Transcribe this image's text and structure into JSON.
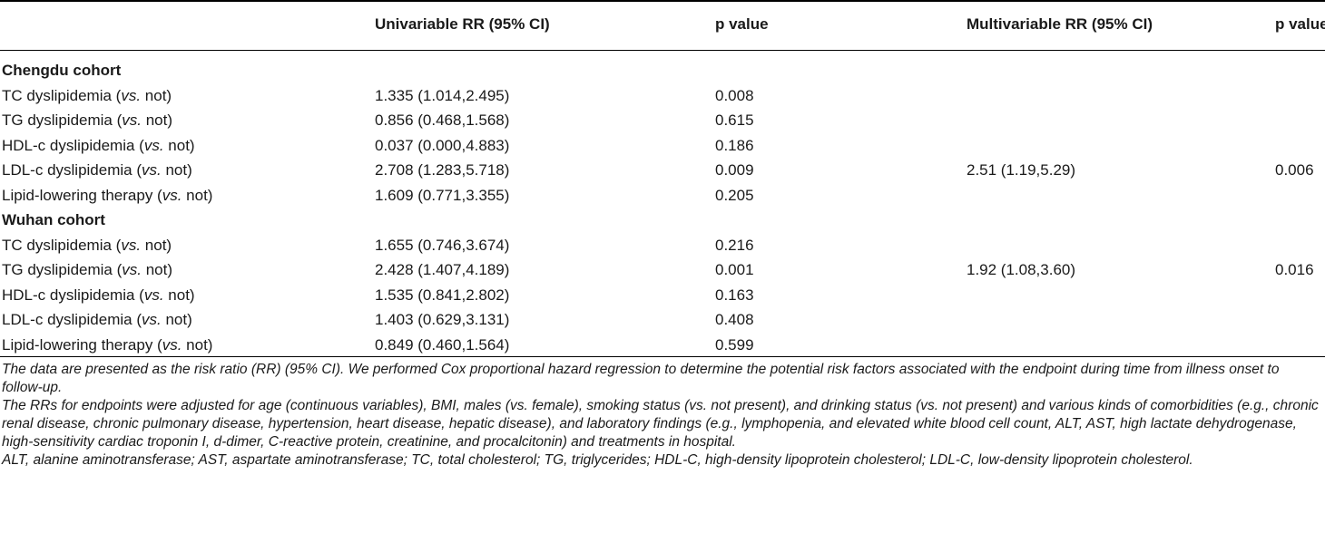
{
  "headers": {
    "univariable": "Univariable RR (95% CI)",
    "p_value_1": "p value",
    "multivariable": "Multivariable RR (95% CI)",
    "p_value_2": "p value"
  },
  "groups": [
    {
      "title": "Chengdu cohort",
      "rows": [
        {
          "label": "TC dyslipidemia",
          "vs": "vs.",
          "suffix": " not)",
          "uni": "1.335 (1.014,2.495)",
          "p1": "0.008",
          "multi": "",
          "p2": ""
        },
        {
          "label": "TG dyslipidemia",
          "vs": "vs.",
          "suffix": " not)",
          "uni": "0.856 (0.468,1.568)",
          "p1": "0.615",
          "multi": "",
          "p2": ""
        },
        {
          "label": "HDL-c dyslipidemia",
          "vs": "vs.",
          "suffix": " not)",
          "uni": "0.037 (0.000,4.883)",
          "p1": "0.186",
          "multi": "",
          "p2": ""
        },
        {
          "label": "LDL-c dyslipidemia",
          "vs": "vs.",
          "suffix": " not)",
          "uni": "2.708 (1.283,5.718)",
          "p1": "0.009",
          "multi": "2.51 (1.19,5.29)",
          "p2": "0.006"
        },
        {
          "label": "Lipid-lowering therapy",
          "vs": "vs.",
          "suffix": " not)",
          "uni": "1.609 (0.771,3.355)",
          "p1": "0.205",
          "multi": "",
          "p2": ""
        }
      ]
    },
    {
      "title": "Wuhan cohort",
      "rows": [
        {
          "label": "TC dyslipidemia",
          "vs": "vs.",
          "suffix": " not)",
          "uni": "1.655 (0.746,3.674)",
          "p1": "0.216",
          "multi": "",
          "p2": ""
        },
        {
          "label": "TG dyslipidemia",
          "vs": "vs.",
          "suffix": " not)",
          "uni": "2.428 (1.407,4.189)",
          "p1": "0.001",
          "multi": "1.92 (1.08,3.60)",
          "p2": "0.016"
        },
        {
          "label": "HDL-c dyslipidemia",
          "vs": "vs.",
          "suffix": " not)",
          "uni": "1.535 (0.841,2.802)",
          "p1": "0.163",
          "multi": "",
          "p2": ""
        },
        {
          "label": "LDL-c dyslipidemia",
          "vs": "vs.",
          "suffix": " not)",
          "uni": "1.403 (0.629,3.131)",
          "p1": "0.408",
          "multi": "",
          "p2": ""
        },
        {
          "label": "Lipid-lowering therapy",
          "vs": "vs.",
          "suffix": " not)",
          "uni": "0.849 (0.460,1.564)",
          "p1": "0.599",
          "multi": "",
          "p2": ""
        }
      ]
    }
  ],
  "notes": [
    "The data are presented as the risk ratio (RR) (95% CI). We performed Cox proportional hazard regression to determine the potential risk factors associated with the endpoint during time from illness onset to follow-up.",
    "The RRs for endpoints were adjusted for age (continuous variables), BMI, males (vs. female), smoking status (vs. not present), and drinking status (vs. not present) and various kinds of comorbidities (e.g., chronic renal disease, chronic pulmonary disease, hypertension, heart disease, hepatic disease), and laboratory findings (e.g., lymphopenia, and elevated white blood cell count, ALT, AST, high lactate dehydrogenase, high-sensitivity cardiac troponin I, d-dimer, C-reactive protein, creatinine, and procalcitonin) and treatments in hospital.",
    "ALT, alanine aminotransferase; AST, aspartate aminotransferase; TC, total cholesterol; TG, triglycerides; HDL-C, high-density lipoprotein cholesterol; LDL-C, low-density lipoprotein cholesterol."
  ]
}
